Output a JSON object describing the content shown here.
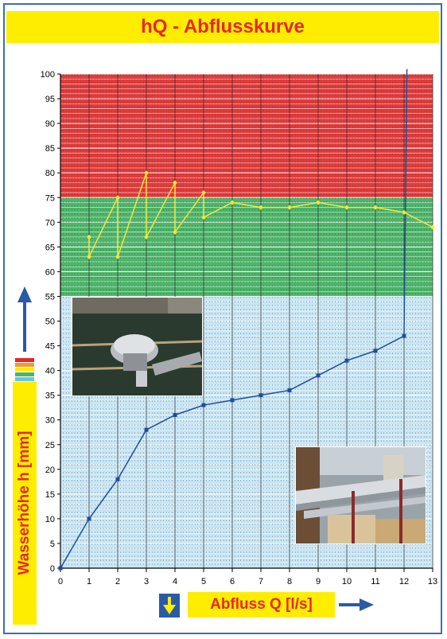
{
  "title": "hQ - Abflusskurve",
  "colors": {
    "title_bar": "#ffed00",
    "title_text": "#e8262a",
    "frame": "#3d6fa8",
    "zone_red": "#e23a3a",
    "zone_green": "#4db56a",
    "zone_blue": "#c8e6f5",
    "line_blue": "#1f4e9c",
    "line_yellow": "#f5e63a"
  },
  "icons": {
    "up_arrow": "up-arrow-icon",
    "right_arrow": "right-arrow-icon",
    "down_arrow": "down-arrow-icon",
    "color_legend": "color-scale-icon"
  },
  "chart_data": {
    "type": "line",
    "title": "hQ - Abflusskurve",
    "xlabel": "Abfluss Q [l/s]",
    "ylabel": "Wasserhöhe h [mm]",
    "xlim": [
      0,
      13
    ],
    "ylim": [
      0,
      100
    ],
    "x_ticks": [
      "0",
      "1",
      "2",
      "3",
      "4",
      "5",
      "6",
      "7",
      "8",
      "9",
      "10",
      "11",
      "12",
      "13"
    ],
    "y_ticks": [
      "0",
      "5",
      "10",
      "15",
      "20",
      "25",
      "30",
      "35",
      "40",
      "45",
      "50",
      "55",
      "60",
      "65",
      "70",
      "75",
      "80",
      "85",
      "90",
      "95",
      "100"
    ],
    "grid": true,
    "zones": [
      {
        "color": "red",
        "y_from": 75,
        "y_to": 100,
        "x_from": 0,
        "x_to": 13
      },
      {
        "color": "green",
        "y_from": 55,
        "y_to": 75,
        "x_from": 0,
        "x_to": 13
      },
      {
        "color": "light-blue",
        "y_from": 35,
        "y_to": 55,
        "x_from": 0,
        "x_to": 13
      },
      {
        "color": "light-blue",
        "y_from": 0,
        "y_to": 35,
        "x_from": 0,
        "x_to": 13
      }
    ],
    "series": [
      {
        "color": "#1f4e9c",
        "marker": "square",
        "points": [
          [
            0,
            0
          ],
          [
            1,
            10
          ],
          [
            2,
            18
          ],
          [
            3,
            28
          ],
          [
            4,
            31
          ],
          [
            5,
            33
          ],
          [
            6,
            34
          ],
          [
            7,
            35
          ],
          [
            8,
            36
          ],
          [
            9,
            39
          ],
          [
            10,
            42
          ],
          [
            11,
            44
          ],
          [
            12,
            47
          ],
          [
            12.1,
            101
          ]
        ]
      },
      {
        "color": "#f5e63a",
        "marker": "diamond",
        "points": [
          [
            1,
            67
          ],
          [
            1,
            63
          ],
          [
            2,
            75
          ],
          [
            2,
            63
          ],
          [
            3,
            80
          ],
          [
            3,
            67
          ],
          [
            4,
            78
          ],
          [
            4,
            68
          ],
          [
            5,
            76
          ],
          [
            5,
            71
          ],
          [
            6,
            74
          ],
          [
            7,
            73
          ],
          [
            8,
            73
          ],
          [
            9,
            74
          ],
          [
            10,
            73
          ],
          [
            11,
            73
          ],
          [
            12,
            72
          ],
          [
            13,
            69
          ]
        ]
      }
    ]
  }
}
